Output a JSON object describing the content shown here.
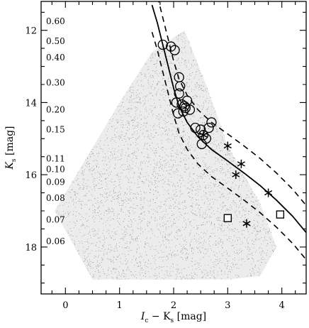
{
  "chart_data": {
    "type": "scatter",
    "xlabel": {
      "main": "I",
      "sub1": "c",
      "mid": " − K",
      "sub2": "s",
      "unit": " [mag]"
    },
    "ylabel": {
      "main": "K",
      "sub": "s",
      "unit": " [mag]"
    },
    "xlim": [
      -0.45,
      4.45
    ],
    "ylim": [
      19.3,
      11.2
    ],
    "xticks": [
      {
        "value": 0,
        "label": "0"
      },
      {
        "value": 1,
        "label": "1"
      },
      {
        "value": 2,
        "label": "2"
      },
      {
        "value": 3,
        "label": "3"
      },
      {
        "value": 4,
        "label": "4"
      }
    ],
    "yticks": [
      {
        "value": 12,
        "label": "12"
      },
      {
        "value": 14,
        "label": "14"
      },
      {
        "value": 16,
        "label": "16"
      },
      {
        "value": 18,
        "label": "18"
      }
    ],
    "mass_scale": [
      {
        "label": "0.60",
        "y": 11.75
      },
      {
        "label": "0.50",
        "y": 12.3
      },
      {
        "label": "0.40",
        "y": 12.75
      },
      {
        "label": "0.30",
        "y": 13.45
      },
      {
        "label": "0.20",
        "y": 14.2
      },
      {
        "label": "0.15",
        "y": 14.75
      },
      {
        "label": "0.11",
        "y": 15.55
      },
      {
        "label": "0.10",
        "y": 15.85
      },
      {
        "label": "0.09",
        "y": 16.2
      },
      {
        "label": "0.08",
        "y": 16.65
      },
      {
        "label": "0.07",
        "y": 17.25
      },
      {
        "label": "0.06",
        "y": 17.85
      }
    ],
    "isochrone": {
      "x": [
        1.6,
        1.7,
        1.8,
        1.9,
        2.0,
        2.1,
        2.25,
        2.45,
        2.7,
        3.0,
        3.3,
        3.6,
        3.9,
        4.2,
        4.45
      ],
      "y": [
        11.3,
        11.8,
        12.4,
        13.0,
        13.6,
        14.1,
        14.55,
        14.95,
        15.3,
        15.62,
        15.95,
        16.3,
        16.7,
        17.15,
        17.6
      ]
    },
    "isochrone_offset": 0.75,
    "field_region": {
      "x": [
        -0.2,
        0.4,
        1.0,
        1.6,
        2.2,
        2.6,
        3.0,
        3.3,
        3.6,
        3.9,
        3.6,
        3.0,
        2.0,
        0.5
      ],
      "y": [
        17.0,
        15.5,
        14.0,
        12.6,
        12.0,
        13.5,
        15.2,
        16.0,
        16.8,
        18.0,
        18.8,
        18.9,
        18.9,
        18.9
      ]
    },
    "series": [
      {
        "marker": "circle",
        "x": [
          1.8,
          1.95,
          2.02,
          2.1,
          2.12,
          2.05,
          2.15,
          2.2,
          2.25,
          2.08,
          2.22,
          2.18,
          2.1,
          2.3,
          2.4,
          2.5,
          2.55,
          2.65,
          2.7,
          2.6,
          2.52
        ],
        "y": [
          12.4,
          12.45,
          12.55,
          13.3,
          13.55,
          14.0,
          14.05,
          14.1,
          13.95,
          14.3,
          14.15,
          14.25,
          13.75,
          14.2,
          14.7,
          14.75,
          14.9,
          14.7,
          14.55,
          15.0,
          15.15
        ]
      },
      {
        "marker": "asterisk",
        "x": [
          2.55,
          3.0,
          3.25,
          3.15,
          3.75,
          3.35
        ],
        "y": [
          14.9,
          15.2,
          15.7,
          16.0,
          16.5,
          17.35
        ]
      },
      {
        "marker": "square",
        "x": [
          3.0,
          3.97
        ],
        "y": [
          17.2,
          17.1
        ]
      }
    ]
  }
}
